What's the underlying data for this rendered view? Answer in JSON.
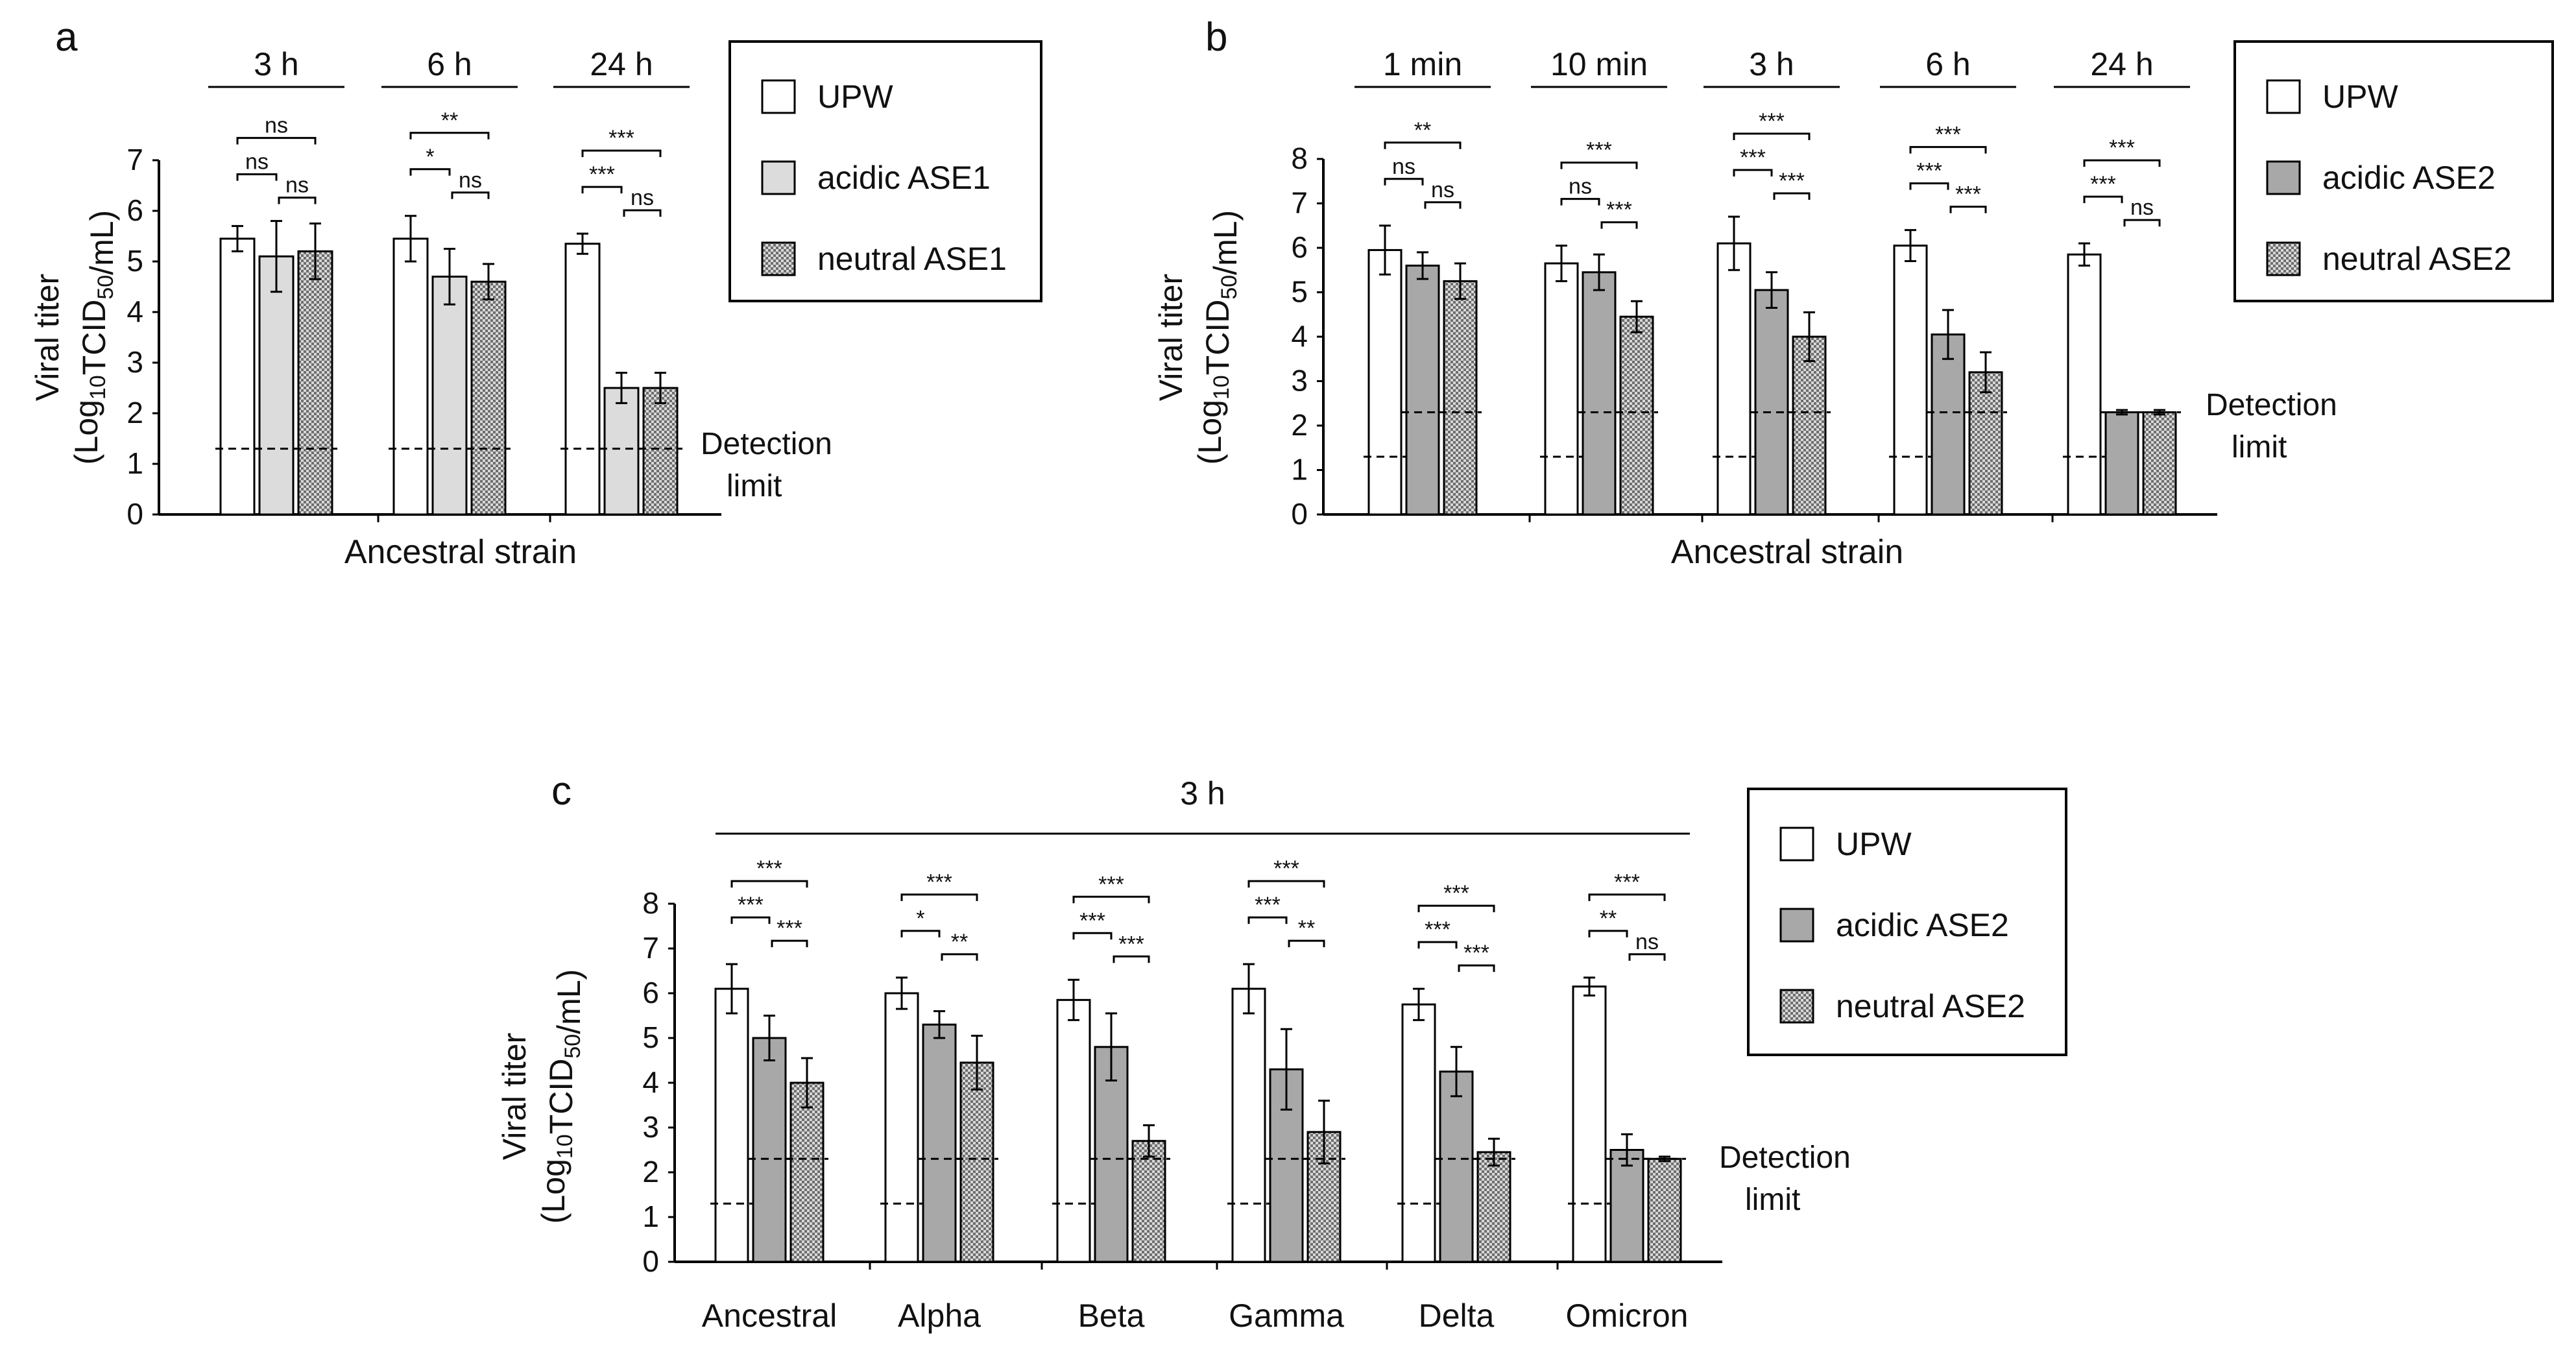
{
  "figure": {
    "ylabel_line1": "Viral titer",
    "ylabel_line2_prefix": "(Log",
    "ylabel_line2_sub1": "10",
    "ylabel_line2_mid": "TCID",
    "ylabel_line2_sub2": "50",
    "ylabel_line2_suffix": "/mL)",
    "detection_label_1": "Detection",
    "detection_label_2": "limit"
  },
  "colors": {
    "UPW": "#ffffff",
    "acidic ASE1": "#dcdcdc",
    "neutral ASE1": "#c4c4c4",
    "acidic ASE2": "#a8a8a8",
    "neutral ASE2": "#8e8e8e",
    "axis": "#000000"
  },
  "chart_data": [
    {
      "panel": "a",
      "type": "bar",
      "title": "",
      "ylabel": "Viral titer (Log10TCID50/mL)",
      "xlabel": "Ancestral strain",
      "ylim": [
        0,
        7
      ],
      "yticks": [
        "0",
        "1",
        "2",
        "3",
        "4",
        "5",
        "6",
        "7"
      ],
      "categories": [
        "3 h",
        "6 h",
        "24 h"
      ],
      "series": [
        {
          "name": "UPW",
          "pattern": "white",
          "values": [
            5.45,
            5.45,
            5.35
          ],
          "errors": [
            0.25,
            0.45,
            0.2
          ]
        },
        {
          "name": "acidic ASE1",
          "pattern": "light",
          "values": [
            5.1,
            4.7,
            2.5
          ],
          "errors": [
            0.7,
            0.55,
            0.3
          ]
        },
        {
          "name": "neutral ASE1",
          "pattern": "check",
          "values": [
            5.2,
            4.6,
            2.5
          ],
          "errors": [
            0.55,
            0.35,
            0.3
          ]
        }
      ],
      "detection_limits": [
        [
          1.3,
          1.3,
          1.3
        ],
        [
          1.3,
          1.3,
          1.3
        ],
        [
          1.3,
          1.3,
          1.3
        ]
      ],
      "significance": [
        [
          "ns",
          "ns",
          "ns"
        ],
        [
          "*",
          "**",
          "ns"
        ],
        [
          "***",
          "***",
          "ns"
        ]
      ],
      "legend": [
        "UPW",
        "acidic ASE1",
        "neutral ASE1"
      ]
    },
    {
      "panel": "b",
      "type": "bar",
      "title": "",
      "ylabel": "Viral titer (Log10TCID50/mL)",
      "xlabel": "Ancestral strain",
      "ylim": [
        0,
        8
      ],
      "yticks": [
        "0",
        "1",
        "2",
        "3",
        "4",
        "5",
        "6",
        "7",
        "8"
      ],
      "categories": [
        "1 min",
        "10 min",
        "3 h",
        "6 h",
        "24 h"
      ],
      "series": [
        {
          "name": "UPW",
          "pattern": "white",
          "values": [
            5.95,
            5.65,
            6.1,
            6.05,
            5.85
          ],
          "errors": [
            0.55,
            0.4,
            0.6,
            0.35,
            0.25
          ]
        },
        {
          "name": "acidic ASE2",
          "pattern": "gray",
          "values": [
            5.6,
            5.45,
            5.05,
            4.05,
            2.3
          ],
          "errors": [
            0.3,
            0.4,
            0.4,
            0.55,
            0.05
          ]
        },
        {
          "name": "neutral ASE2",
          "pattern": "check",
          "values": [
            5.25,
            4.45,
            4.0,
            3.2,
            2.3
          ],
          "errors": [
            0.4,
            0.35,
            0.55,
            0.45,
            0.05
          ]
        }
      ],
      "detection_limits": [
        [
          1.3,
          2.3,
          2.3
        ],
        [
          1.3,
          2.3,
          2.3
        ],
        [
          1.3,
          2.3,
          2.3
        ],
        [
          1.3,
          2.3,
          2.3
        ],
        [
          1.3,
          2.3,
          2.3
        ]
      ],
      "significance": [
        [
          "ns",
          "**",
          "ns"
        ],
        [
          "ns",
          "***",
          "***"
        ],
        [
          "***",
          "***",
          "***"
        ],
        [
          "***",
          "***",
          "***"
        ],
        [
          "***",
          "***",
          "ns"
        ]
      ],
      "legend": [
        "UPW",
        "acidic ASE2",
        "neutral ASE2"
      ]
    },
    {
      "panel": "c",
      "type": "bar",
      "title": "3 h",
      "ylabel": "Viral titer (Log10TCID50/mL)",
      "xlabel": "",
      "ylim": [
        0,
        8
      ],
      "yticks": [
        "0",
        "1",
        "2",
        "3",
        "4",
        "5",
        "6",
        "7",
        "8"
      ],
      "categories": [
        "Ancestral",
        "Alpha",
        "Beta",
        "Gamma",
        "Delta",
        "Omicron"
      ],
      "series": [
        {
          "name": "UPW",
          "pattern": "white",
          "values": [
            6.1,
            6.0,
            5.85,
            6.1,
            5.75,
            6.15
          ],
          "errors": [
            0.55,
            0.35,
            0.45,
            0.55,
            0.35,
            0.2
          ]
        },
        {
          "name": "acidic ASE2",
          "pattern": "gray",
          "values": [
            5.0,
            5.3,
            4.8,
            4.3,
            4.25,
            2.5
          ],
          "errors": [
            0.5,
            0.3,
            0.75,
            0.9,
            0.55,
            0.35
          ]
        },
        {
          "name": "neutral ASE2",
          "pattern": "check",
          "values": [
            4.0,
            4.45,
            2.7,
            2.9,
            2.45,
            2.3
          ],
          "errors": [
            0.55,
            0.6,
            0.35,
            0.7,
            0.3,
            0.05
          ]
        }
      ],
      "detection_limits": [
        [
          1.3,
          2.3,
          2.3
        ],
        [
          1.3,
          2.3,
          2.3
        ],
        [
          1.3,
          2.3,
          2.3
        ],
        [
          1.3,
          2.3,
          2.3
        ],
        [
          1.3,
          2.3,
          2.3
        ],
        [
          1.3,
          2.3,
          2.3
        ]
      ],
      "significance": [
        [
          "***",
          "***",
          "***"
        ],
        [
          "*",
          "***",
          "**"
        ],
        [
          "***",
          "***",
          "***"
        ],
        [
          "***",
          "***",
          "**"
        ],
        [
          "***",
          "***",
          "***"
        ],
        [
          "**",
          "***",
          "ns"
        ]
      ],
      "legend": [
        "UPW",
        "acidic ASE2",
        "neutral ASE2"
      ]
    }
  ]
}
